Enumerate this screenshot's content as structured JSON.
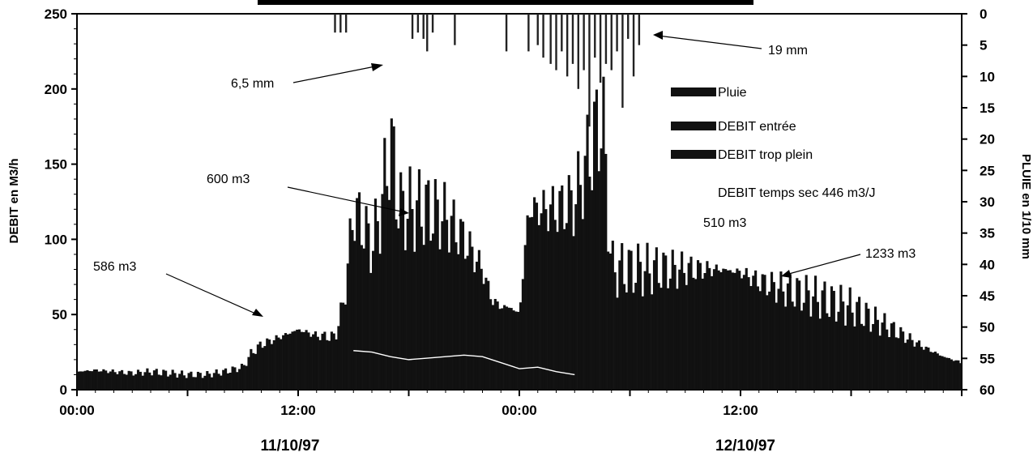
{
  "chart_data": {
    "type": "bar",
    "title": "",
    "ylabel_left": "DEBIT en M3/h",
    "ylabel_right": "PLUIE en 1/10 mm",
    "ylim_left": [
      0,
      250
    ],
    "ylim_right_inverted": [
      0,
      60
    ],
    "left_ticks": [
      "0",
      "50",
      "100",
      "150",
      "200",
      "250"
    ],
    "right_ticks": [
      "0",
      "5",
      "10",
      "15",
      "20",
      "25",
      "30",
      "35",
      "40",
      "45",
      "50",
      "55",
      "60"
    ],
    "x_hours_range": [
      0,
      48
    ],
    "x_ticks": [
      {
        "hour": 0,
        "label": "00:00"
      },
      {
        "hour": 12,
        "label": "12:00"
      },
      {
        "hour": 24,
        "label": "00:00"
      },
      {
        "hour": 36,
        "label": "12:00"
      }
    ],
    "date_labels": [
      {
        "hour": 12,
        "label": "11/10/97"
      },
      {
        "hour": 36,
        "label": "12/10/97"
      }
    ],
    "legend": {
      "position": "right",
      "entries": [
        "Pluie",
        "DEBIT entrée",
        "DEBIT trop plein"
      ]
    },
    "note": "DEBIT temps sec 446 m3/J",
    "annotations": [
      "586 m3",
      "6,5 mm",
      "600 m3",
      "19 mm",
      "510 m3",
      "1233 m3"
    ],
    "series": [
      {
        "name": "DEBIT entrée",
        "x_hours": [
          0,
          1,
          2,
          3,
          4,
          5,
          6,
          7,
          8,
          9,
          9.5,
          10,
          11,
          12,
          13,
          14,
          14.5,
          15,
          15.5,
          16,
          16.5,
          17,
          17.5,
          18,
          18.5,
          19,
          20,
          21,
          22,
          22.5,
          23,
          23.5,
          24,
          24.5,
          25,
          25.5,
          26,
          27,
          28,
          28.5,
          29,
          29.5,
          30,
          31,
          32,
          33,
          34,
          35,
          36,
          37,
          38,
          39,
          40,
          41,
          42,
          43,
          44,
          45,
          46,
          47,
          48
        ],
        "values": [
          12,
          13,
          12,
          11,
          12,
          11,
          10,
          10,
          12,
          15,
          25,
          30,
          35,
          40,
          36,
          35,
          60,
          120,
          110,
          95,
          120,
          165,
          120,
          120,
          120,
          120,
          115,
          100,
          80,
          60,
          55,
          55,
          50,
          120,
          120,
          120,
          120,
          125,
          165,
          185,
          80,
          80,
          80,
          80,
          80,
          80,
          80,
          80,
          78,
          72,
          68,
          65,
          62,
          58,
          55,
          48,
          42,
          35,
          28,
          22,
          18
        ]
      },
      {
        "name": "DEBIT trop plein",
        "x_hours": [
          15,
          16,
          17,
          18,
          19,
          20,
          21,
          22,
          24,
          25,
          26,
          27
        ],
        "values": [
          26,
          25,
          22,
          20,
          21,
          22,
          23,
          22,
          14,
          15,
          12,
          10
        ]
      },
      {
        "name": "Pluie",
        "x_hours": [
          14,
          14.3,
          14.6,
          18.2,
          18.5,
          18.8,
          19,
          19.3,
          20.5,
          23.3,
          24.5,
          25,
          25.3,
          25.7,
          26,
          26.3,
          26.6,
          26.9,
          27.2,
          27.5,
          27.8,
          28.1,
          28.4,
          28.7,
          29,
          29.3,
          29.6,
          29.9,
          30.2,
          30.5
        ],
        "values": [
          3,
          3,
          3,
          4,
          3,
          4,
          6,
          3,
          5,
          6,
          6,
          5,
          7,
          8,
          9,
          6,
          10,
          8,
          12,
          9,
          18,
          7,
          11,
          8,
          9,
          6,
          15,
          4,
          10,
          5
        ]
      }
    ]
  }
}
